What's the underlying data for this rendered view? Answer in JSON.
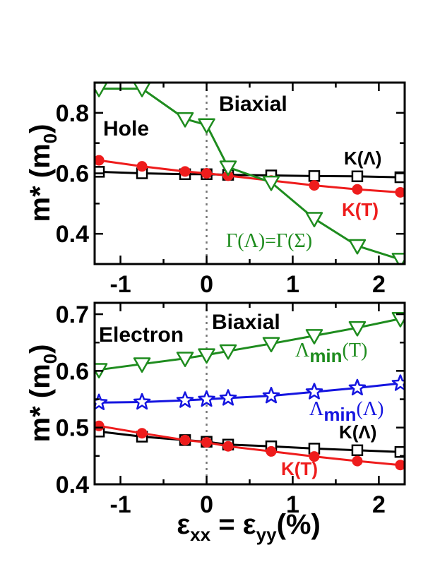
{
  "chart_data": [
    {
      "type": "line",
      "panel": "top",
      "annotations": {
        "strain": "Biaxial",
        "carrier": "Hole"
      },
      "ylabel": "m* (m",
      "ylabel_sub": "0",
      "ylabel_end": ")",
      "xlim": [
        -1.3,
        2.3
      ],
      "ylim": [
        0.3,
        0.9
      ],
      "xticks": [
        -1,
        0,
        1,
        2
      ],
      "yticks": [
        0.4,
        0.6,
        0.8
      ],
      "ytick_labels": [
        "0.4",
        "0.6",
        "0.8"
      ],
      "xtick_labels": [
        "-1",
        "0",
        "1",
        "2"
      ],
      "vline": 0,
      "x": [
        -1.25,
        -0.75,
        -0.25,
        0,
        0.25,
        0.75,
        1.25,
        1.75,
        2.25
      ],
      "series": [
        {
          "label": "K(Λ)",
          "color": "#000000",
          "marker": "square",
          "values": [
            0.605,
            0.6,
            0.597,
            0.597,
            0.595,
            0.593,
            0.591,
            0.59,
            0.587
          ]
        },
        {
          "label": "K(T)",
          "color": "#ee1c1c",
          "marker": "circle",
          "values": [
            0.643,
            0.623,
            0.606,
            0.6,
            0.592,
            0.576,
            0.56,
            0.547,
            0.537
          ]
        },
        {
          "label": "Γ(Λ)=Γ(Σ)",
          "color": "#1e8c1e",
          "marker": "triangle-down",
          "values": [
            0.88,
            0.88,
            0.78,
            0.76,
            0.62,
            0.57,
            0.45,
            0.36,
            0.315
          ]
        }
      ]
    },
    {
      "type": "line",
      "panel": "bottom",
      "annotations": {
        "strain": "Biaxial",
        "carrier": "Electron"
      },
      "ylabel": "m* (m",
      "ylabel_sub": "0",
      "ylabel_end": ")",
      "xlabel_eps": "ε",
      "xlabel_sub1": "xx",
      "xlabel_mid": " = ε",
      "xlabel_sub2": "yy",
      "xlabel_end": "(%)",
      "xlim": [
        -1.3,
        2.3
      ],
      "ylim": [
        0.4,
        0.72
      ],
      "xticks": [
        -1,
        0,
        1,
        2
      ],
      "yticks": [
        0.4,
        0.5,
        0.6,
        0.7
      ],
      "ytick_labels": [
        "0.4",
        "0.5",
        "0.6",
        "0.7"
      ],
      "xtick_labels": [
        "-1",
        "0",
        "1",
        "2"
      ],
      "vline": 0,
      "x": [
        -1.25,
        -0.75,
        -0.25,
        0,
        0.25,
        0.75,
        1.25,
        1.75,
        2.25
      ],
      "series": [
        {
          "label": "Λ",
          "sub": "min",
          "tail": "(T)",
          "color": "#1e8c1e",
          "marker": "triangle-down",
          "values": [
            0.602,
            0.612,
            0.622,
            0.628,
            0.635,
            0.648,
            0.662,
            0.676,
            0.692
          ]
        },
        {
          "label": "Λ",
          "sub": "min",
          "tail": "(Λ)",
          "color": "#1515e0",
          "marker": "star",
          "values": [
            0.544,
            0.545,
            0.548,
            0.55,
            0.552,
            0.556,
            0.563,
            0.57,
            0.578
          ]
        },
        {
          "label": "K(Λ)",
          "color": "#000000",
          "marker": "square",
          "values": [
            0.493,
            0.484,
            0.478,
            0.475,
            0.47,
            0.467,
            0.463,
            0.46,
            0.457
          ]
        },
        {
          "label": "K(T)",
          "color": "#ee1c1c",
          "marker": "circle",
          "values": [
            0.503,
            0.49,
            0.478,
            0.474,
            0.467,
            0.458,
            0.449,
            0.441,
            0.434
          ]
        }
      ]
    }
  ]
}
